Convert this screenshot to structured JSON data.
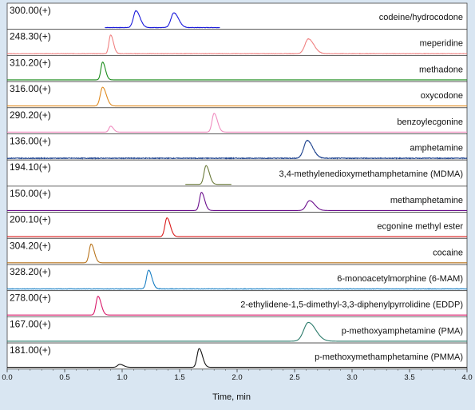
{
  "chart_data": {
    "type": "line",
    "xlabel": "Time, min",
    "xlim": [
      0.0,
      4.0
    ],
    "x_ticks": [
      "0.0",
      "0.5",
      "1.0",
      "1.5",
      "2.0",
      "2.5",
      "3.0",
      "3.5",
      "4.0"
    ],
    "panel_background": "#ffffff",
    "page_background": "#d9e6f2",
    "series": [
      {
        "name": "codeine/hydrocodone",
        "mz": "300.00(+)",
        "color": "#1a1adb",
        "trace_start": 0.85,
        "trace_end": 1.85,
        "noise": 0.02,
        "peaks": [
          {
            "t": 1.12,
            "h": 0.85,
            "w": 0.022
          },
          {
            "t": 1.45,
            "h": 0.75,
            "w": 0.025
          }
        ]
      },
      {
        "name": "meperidine",
        "mz": "248.30(+)",
        "color": "#f08080",
        "trace_start": 0.0,
        "trace_end": 4.0,
        "noise": 0.02,
        "peaks": [
          {
            "t": 0.9,
            "h": 0.95,
            "w": 0.015
          },
          {
            "t": 2.62,
            "h": 0.75,
            "w": 0.03
          }
        ]
      },
      {
        "name": "methadone",
        "mz": "310.20(+)",
        "color": "#1a8c1a",
        "trace_start": 0.0,
        "trace_end": 4.0,
        "noise": 0.0,
        "peaks": [
          {
            "t": 0.83,
            "h": 0.9,
            "w": 0.015
          }
        ]
      },
      {
        "name": "oxycodone",
        "mz": "316.00(+)",
        "color": "#e08a1e",
        "trace_start": 0.0,
        "trace_end": 4.0,
        "noise": 0.0,
        "peaks": [
          {
            "t": 0.83,
            "h": 0.95,
            "w": 0.02
          }
        ]
      },
      {
        "name": "benzoylecgonine",
        "mz": "290.20(+)",
        "color": "#f08cbf",
        "trace_start": 0.0,
        "trace_end": 4.0,
        "noise": 0.0,
        "peaks": [
          {
            "t": 0.9,
            "h": 0.3,
            "w": 0.015
          },
          {
            "t": 1.8,
            "h": 0.95,
            "w": 0.018
          }
        ]
      },
      {
        "name": "amphetamine",
        "mz": "136.00(+)",
        "color": "#1a3f8c",
        "trace_start": 0.0,
        "trace_end": 4.0,
        "noise": 0.04,
        "peaks": [
          {
            "t": 2.61,
            "h": 0.9,
            "w": 0.03
          }
        ]
      },
      {
        "name": "3,4-methylenedioxymethamphetamine (MDMA)",
        "mz": "194.10(+)",
        "color": "#6b7a3a",
        "trace_start": 1.55,
        "trace_end": 1.95,
        "noise": 0.0,
        "peaks": [
          {
            "t": 1.73,
            "h": 0.95,
            "w": 0.018
          }
        ]
      },
      {
        "name": "methamphetamine",
        "mz": "150.00(+)",
        "color": "#6a0d8c",
        "trace_start": 0.0,
        "trace_end": 4.0,
        "noise": 0.0,
        "peaks": [
          {
            "t": 1.69,
            "h": 0.92,
            "w": 0.017
          },
          {
            "t": 2.63,
            "h": 0.5,
            "w": 0.028
          }
        ]
      },
      {
        "name": "ecgonine methyl ester",
        "mz": "200.10(+)",
        "color": "#d91a1a",
        "trace_start": 0.0,
        "trace_end": 4.0,
        "noise": 0.0,
        "peaks": [
          {
            "t": 1.39,
            "h": 0.95,
            "w": 0.018
          }
        ]
      },
      {
        "name": "cocaine",
        "mz": "304.20(+)",
        "color": "#b8731a",
        "trace_start": 0.0,
        "trace_end": 4.0,
        "noise": 0.0,
        "peaks": [
          {
            "t": 0.73,
            "h": 0.95,
            "w": 0.017
          }
        ]
      },
      {
        "name": "6-monoacetylmorphine (6-MAM)",
        "mz": "328.20(+)",
        "color": "#1a7fc4",
        "trace_start": 0.0,
        "trace_end": 4.0,
        "noise": 0.02,
        "peaks": [
          {
            "t": 1.23,
            "h": 0.95,
            "w": 0.018
          }
        ]
      },
      {
        "name": "2-ethylidene-1,5-dimethyl-3,3-diphenylpyrrolidine (EDDP)",
        "mz": "278.00(+)",
        "color": "#d91a6a",
        "trace_start": 0.0,
        "trace_end": 4.0,
        "noise": 0.0,
        "peaks": [
          {
            "t": 0.79,
            "h": 0.95,
            "w": 0.017
          }
        ]
      },
      {
        "name": "p-methoxyamphetamine (PMA)",
        "mz": "167.00(+)",
        "color": "#2a7a6a",
        "trace_start": 0.0,
        "trace_end": 4.0,
        "noise": 0.0,
        "peaks": [
          {
            "t": 2.62,
            "h": 0.95,
            "w": 0.04
          }
        ]
      },
      {
        "name": "p-methoxymethamphetamine (PMMA)",
        "mz": "181.00(+)",
        "color": "#111111",
        "trace_start": 0.0,
        "trace_end": 4.0,
        "noise": 0.0,
        "peaks": [
          {
            "t": 0.98,
            "h": 0.15,
            "w": 0.02
          },
          {
            "t": 1.67,
            "h": 0.95,
            "w": 0.018
          }
        ]
      }
    ]
  }
}
